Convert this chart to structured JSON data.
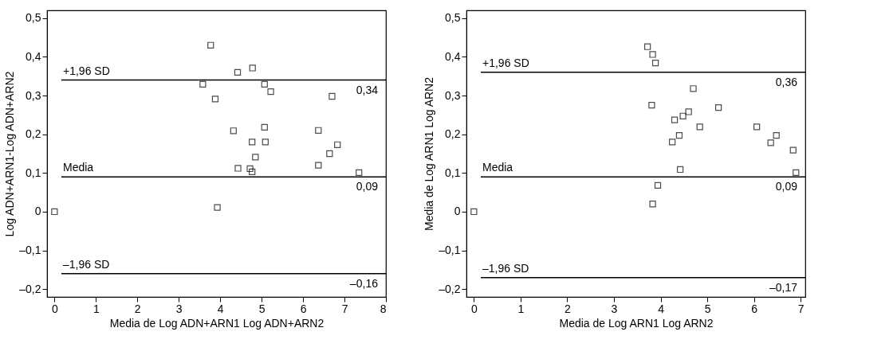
{
  "chart_data": [
    {
      "type": "scatter",
      "xlabel": "Media de Log ADN+ARN1 Log ADN+ARN2",
      "ylabel": "Log ADN+ARN1-Log ADN+ARN2",
      "marker": "square",
      "grid": false,
      "legend": false,
      "series": [
        {
          "color": "#000000",
          "x": [
            0,
            3.77,
            3.58,
            3.88,
            4.42,
            4.78,
            5.07,
            5.22,
            6.7,
            4.32,
            5.07,
            6.37,
            4.77,
            5.09,
            6.83,
            4.85,
            6.64,
            4.43,
            4.72,
            4.77,
            6.37,
            7.35,
            3.93
          ],
          "values": [
            0,
            0.43,
            0.329,
            0.291,
            0.36,
            0.371,
            0.329,
            0.31,
            0.298,
            0.209,
            0.218,
            0.21,
            0.18,
            0.18,
            0.173,
            0.141,
            0.15,
            0.112,
            0.111,
            0.103,
            0.12,
            0.101,
            0.011
          ]
        }
      ],
      "xlim": [
        -0.18,
        8
      ],
      "xticks": [
        0,
        1,
        2,
        3,
        4,
        5,
        6,
        7,
        8
      ],
      "ylim": [
        -0.22,
        0.52
      ],
      "yticks": [
        {
          "value": -0.2,
          "label": "–0,2"
        },
        {
          "value": -0.1,
          "label": "–0,1"
        },
        0,
        {
          "value": 0.1,
          "label": "0,1"
        },
        {
          "value": 0.2,
          "label": "0,2"
        },
        {
          "value": 0.3,
          "label": "0,3"
        },
        {
          "value": 0.4,
          "label": "0,4"
        },
        {
          "value": 0.5,
          "label": "0,5"
        }
      ],
      "ref_lines": [
        {
          "axis": "y",
          "value": 0.34,
          "label": "+1,96 SD",
          "color": "#000000"
        },
        {
          "axis": "y",
          "value": 0.09,
          "label": "Media",
          "color": "#000000"
        },
        {
          "axis": "y",
          "value": -0.16,
          "label": "–1,96 SD",
          "color": "#000000"
        }
      ],
      "annotations": [
        "0,34",
        "0,09",
        "–0,16"
      ]
    },
    {
      "type": "scatter",
      "xlabel": "Media de Log ARN1 Log ARN2",
      "ylabel": "Media de Log ARN1 Log ARN2",
      "marker": "square",
      "grid": false,
      "legend": false,
      "series": [
        {
          "color": "#000000",
          "x": [
            0,
            3.72,
            3.83,
            3.89,
            4.7,
            3.81,
            5.24,
            4.3,
            4.48,
            4.6,
            4.84,
            6.06,
            4.4,
            4.25,
            6.36,
            6.48,
            6.84,
            4.42,
            6.9,
            3.94,
            3.83
          ],
          "values": [
            0,
            0.426,
            0.406,
            0.384,
            0.318,
            0.275,
            0.269,
            0.237,
            0.247,
            0.258,
            0.219,
            0.219,
            0.197,
            0.18,
            0.178,
            0.197,
            0.159,
            0.109,
            0.101,
            0.068,
            0.02
          ]
        }
      ],
      "xlim": [
        -0.16,
        7.1
      ],
      "xticks": [
        0,
        1,
        2,
        3,
        4,
        5,
        6,
        7
      ],
      "ylim": [
        -0.22,
        0.52
      ],
      "yticks": [
        {
          "value": -0.2,
          "label": "–0,2"
        },
        {
          "value": -0.1,
          "label": "–0,1"
        },
        0,
        {
          "value": 0.1,
          "label": "0,1"
        },
        {
          "value": 0.2,
          "label": "0,2"
        },
        {
          "value": 0.3,
          "label": "0,3"
        },
        {
          "value": 0.4,
          "label": "0,4"
        },
        {
          "value": 0.5,
          "label": "0,5"
        }
      ],
      "ref_lines": [
        {
          "axis": "y",
          "value": 0.36,
          "label": "+1,96 SD",
          "color": "#000000"
        },
        {
          "axis": "y",
          "value": 0.09,
          "label": "Media",
          "color": "#000000"
        },
        {
          "axis": "y",
          "value": -0.17,
          "label": "–1,96 SD",
          "color": "#000000"
        }
      ],
      "annotations": [
        "0,36",
        "0,09",
        "–0,17"
      ]
    }
  ]
}
